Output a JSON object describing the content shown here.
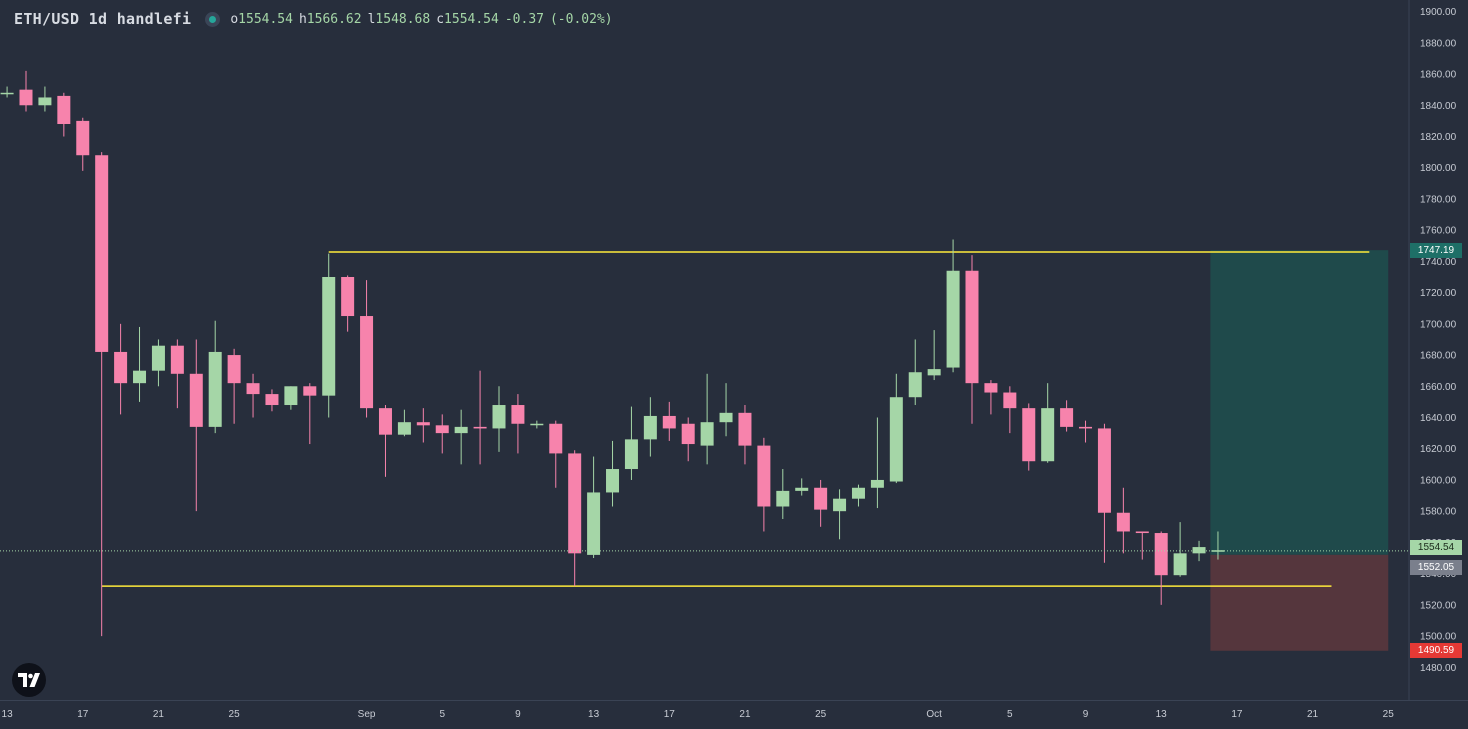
{
  "header": {
    "symbol": "ETH/USD",
    "interval": "1d",
    "source": "handlefi",
    "ohlc": {
      "o": "1554.54",
      "h": "1566.62",
      "l": "1548.68",
      "c": "1554.54",
      "change": "-0.37",
      "change_pct": "(-0.02%)"
    }
  },
  "price_tags": {
    "tp": "1747.19",
    "current": "1554.54",
    "entry": "1552.05",
    "sl": "1490.59"
  },
  "colors": {
    "background": "#272e3c",
    "up": "#a5d6a7",
    "down": "#f783ac",
    "level_line": "#ffeb3b",
    "profit_zone": "#1f4a4b",
    "loss_zone": "#55363d",
    "tag_tp": "#1e6f67",
    "tag_sl": "#e53935",
    "tag_entry": "#7a7f8c"
  },
  "chart_data": {
    "type": "candlestick",
    "ylim": [
      1470,
      1910
    ],
    "y_ticks": [
      1480,
      1500,
      1520,
      1540,
      1560,
      1580,
      1600,
      1620,
      1640,
      1660,
      1680,
      1700,
      1720,
      1740,
      1760,
      1780,
      1800,
      1820,
      1840,
      1860,
      1880,
      1900
    ],
    "x_ticks": [
      {
        "label": "13",
        "day": 0
      },
      {
        "label": "17",
        "day": 4
      },
      {
        "label": "21",
        "day": 8
      },
      {
        "label": "25",
        "day": 12
      },
      {
        "label": "Sep",
        "day": 19
      },
      {
        "label": "5",
        "day": 23
      },
      {
        "label": "9",
        "day": 27
      },
      {
        "label": "13",
        "day": 31
      },
      {
        "label": "17",
        "day": 35
      },
      {
        "label": "21",
        "day": 39
      },
      {
        "label": "25",
        "day": 43
      },
      {
        "label": "Oct",
        "day": 49
      },
      {
        "label": "5",
        "day": 53
      },
      {
        "label": "9",
        "day": 57
      },
      {
        "label": "13",
        "day": 61
      },
      {
        "label": "17",
        "day": 65
      },
      {
        "label": "21",
        "day": 69
      },
      {
        "label": "25",
        "day": 73
      }
    ],
    "candles": [
      {
        "o": 1848,
        "h": 1852,
        "l": 1845,
        "c": 1848
      },
      {
        "o": 1850,
        "h": 1862,
        "l": 1836,
        "c": 1840
      },
      {
        "o": 1840,
        "h": 1852,
        "l": 1836,
        "c": 1845
      },
      {
        "o": 1846,
        "h": 1848,
        "l": 1820,
        "c": 1828
      },
      {
        "o": 1830,
        "h": 1832,
        "l": 1798,
        "c": 1808
      },
      {
        "o": 1808,
        "h": 1810,
        "l": 1500,
        "c": 1682
      },
      {
        "o": 1682,
        "h": 1700,
        "l": 1642,
        "c": 1662
      },
      {
        "o": 1662,
        "h": 1698,
        "l": 1650,
        "c": 1670
      },
      {
        "o": 1670,
        "h": 1690,
        "l": 1660,
        "c": 1686
      },
      {
        "o": 1686,
        "h": 1690,
        "l": 1646,
        "c": 1668
      },
      {
        "o": 1668,
        "h": 1690,
        "l": 1580,
        "c": 1634
      },
      {
        "o": 1634,
        "h": 1702,
        "l": 1630,
        "c": 1682
      },
      {
        "o": 1680,
        "h": 1684,
        "l": 1636,
        "c": 1662
      },
      {
        "o": 1662,
        "h": 1668,
        "l": 1640,
        "c": 1655
      },
      {
        "o": 1655,
        "h": 1658,
        "l": 1644,
        "c": 1648
      },
      {
        "o": 1648,
        "h": 1660,
        "l": 1645,
        "c": 1660
      },
      {
        "o": 1660,
        "h": 1662,
        "l": 1623,
        "c": 1654
      },
      {
        "o": 1654,
        "h": 1745,
        "l": 1640,
        "c": 1730
      },
      {
        "o": 1730,
        "h": 1731,
        "l": 1695,
        "c": 1705
      },
      {
        "o": 1705,
        "h": 1728,
        "l": 1640,
        "c": 1646
      },
      {
        "o": 1646,
        "h": 1648,
        "l": 1602,
        "c": 1629
      },
      {
        "o": 1629,
        "h": 1645,
        "l": 1628,
        "c": 1637
      },
      {
        "o": 1637,
        "h": 1646,
        "l": 1624,
        "c": 1635
      },
      {
        "o": 1635,
        "h": 1642,
        "l": 1617,
        "c": 1630
      },
      {
        "o": 1630,
        "h": 1645,
        "l": 1610,
        "c": 1634
      },
      {
        "o": 1634,
        "h": 1670,
        "l": 1610,
        "c": 1633
      },
      {
        "o": 1633,
        "h": 1660,
        "l": 1618,
        "c": 1648
      },
      {
        "o": 1648,
        "h": 1655,
        "l": 1617,
        "c": 1636
      },
      {
        "o": 1636,
        "h": 1638,
        "l": 1633,
        "c": 1636
      },
      {
        "o": 1636,
        "h": 1638,
        "l": 1595,
        "c": 1617
      },
      {
        "o": 1617,
        "h": 1619,
        "l": 1532,
        "c": 1553
      },
      {
        "o": 1552,
        "h": 1615,
        "l": 1550,
        "c": 1592
      },
      {
        "o": 1592,
        "h": 1625,
        "l": 1583,
        "c": 1607
      },
      {
        "o": 1607,
        "h": 1647,
        "l": 1600,
        "c": 1626
      },
      {
        "o": 1626,
        "h": 1653,
        "l": 1615,
        "c": 1641
      },
      {
        "o": 1641,
        "h": 1650,
        "l": 1625,
        "c": 1633
      },
      {
        "o": 1636,
        "h": 1640,
        "l": 1612,
        "c": 1623
      },
      {
        "o": 1622,
        "h": 1668,
        "l": 1610,
        "c": 1637
      },
      {
        "o": 1637,
        "h": 1662,
        "l": 1628,
        "c": 1643
      },
      {
        "o": 1643,
        "h": 1648,
        "l": 1610,
        "c": 1622
      },
      {
        "o": 1622,
        "h": 1627,
        "l": 1567,
        "c": 1583
      },
      {
        "o": 1583,
        "h": 1607,
        "l": 1575,
        "c": 1593
      },
      {
        "o": 1593,
        "h": 1601,
        "l": 1590,
        "c": 1595
      },
      {
        "o": 1595,
        "h": 1600,
        "l": 1570,
        "c": 1581
      },
      {
        "o": 1580,
        "h": 1594,
        "l": 1562,
        "c": 1588
      },
      {
        "o": 1588,
        "h": 1597,
        "l": 1583,
        "c": 1595
      },
      {
        "o": 1595,
        "h": 1640,
        "l": 1582,
        "c": 1600
      },
      {
        "o": 1599,
        "h": 1668,
        "l": 1598,
        "c": 1653
      },
      {
        "o": 1653,
        "h": 1690,
        "l": 1648,
        "c": 1669
      },
      {
        "o": 1667,
        "h": 1696,
        "l": 1664,
        "c": 1671
      },
      {
        "o": 1672,
        "h": 1754,
        "l": 1669,
        "c": 1734
      },
      {
        "o": 1734,
        "h": 1744,
        "l": 1636,
        "c": 1662
      },
      {
        "o": 1662,
        "h": 1664,
        "l": 1642,
        "c": 1656
      },
      {
        "o": 1656,
        "h": 1660,
        "l": 1630,
        "c": 1646
      },
      {
        "o": 1646,
        "h": 1649,
        "l": 1606,
        "c": 1612
      },
      {
        "o": 1612,
        "h": 1662,
        "l": 1611,
        "c": 1646
      },
      {
        "o": 1646,
        "h": 1651,
        "l": 1631,
        "c": 1634
      },
      {
        "o": 1634,
        "h": 1638,
        "l": 1624,
        "c": 1633
      },
      {
        "o": 1633,
        "h": 1636,
        "l": 1547,
        "c": 1579
      },
      {
        "o": 1579,
        "h": 1595,
        "l": 1553,
        "c": 1567
      },
      {
        "o": 1567,
        "h": 1567,
        "l": 1549,
        "c": 1566
      },
      {
        "o": 1566,
        "h": 1567,
        "l": 1520,
        "c": 1539
      },
      {
        "o": 1539,
        "h": 1573,
        "l": 1538,
        "c": 1553
      },
      {
        "o": 1553,
        "h": 1561,
        "l": 1548,
        "c": 1557
      },
      {
        "o": 1554,
        "h": 1567,
        "l": 1549,
        "c": 1555
      }
    ],
    "levels": [
      {
        "name": "resistance",
        "value": 1746,
        "from_day": 17,
        "to_day": 72
      },
      {
        "name": "support",
        "value": 1532,
        "from_day": 5,
        "to_day": 70
      }
    ],
    "position": {
      "from_day": 63.6,
      "to_day": 73,
      "entry": 1552.05,
      "target": 1747.19,
      "stop": 1490.59
    },
    "current_price": 1554.54
  }
}
